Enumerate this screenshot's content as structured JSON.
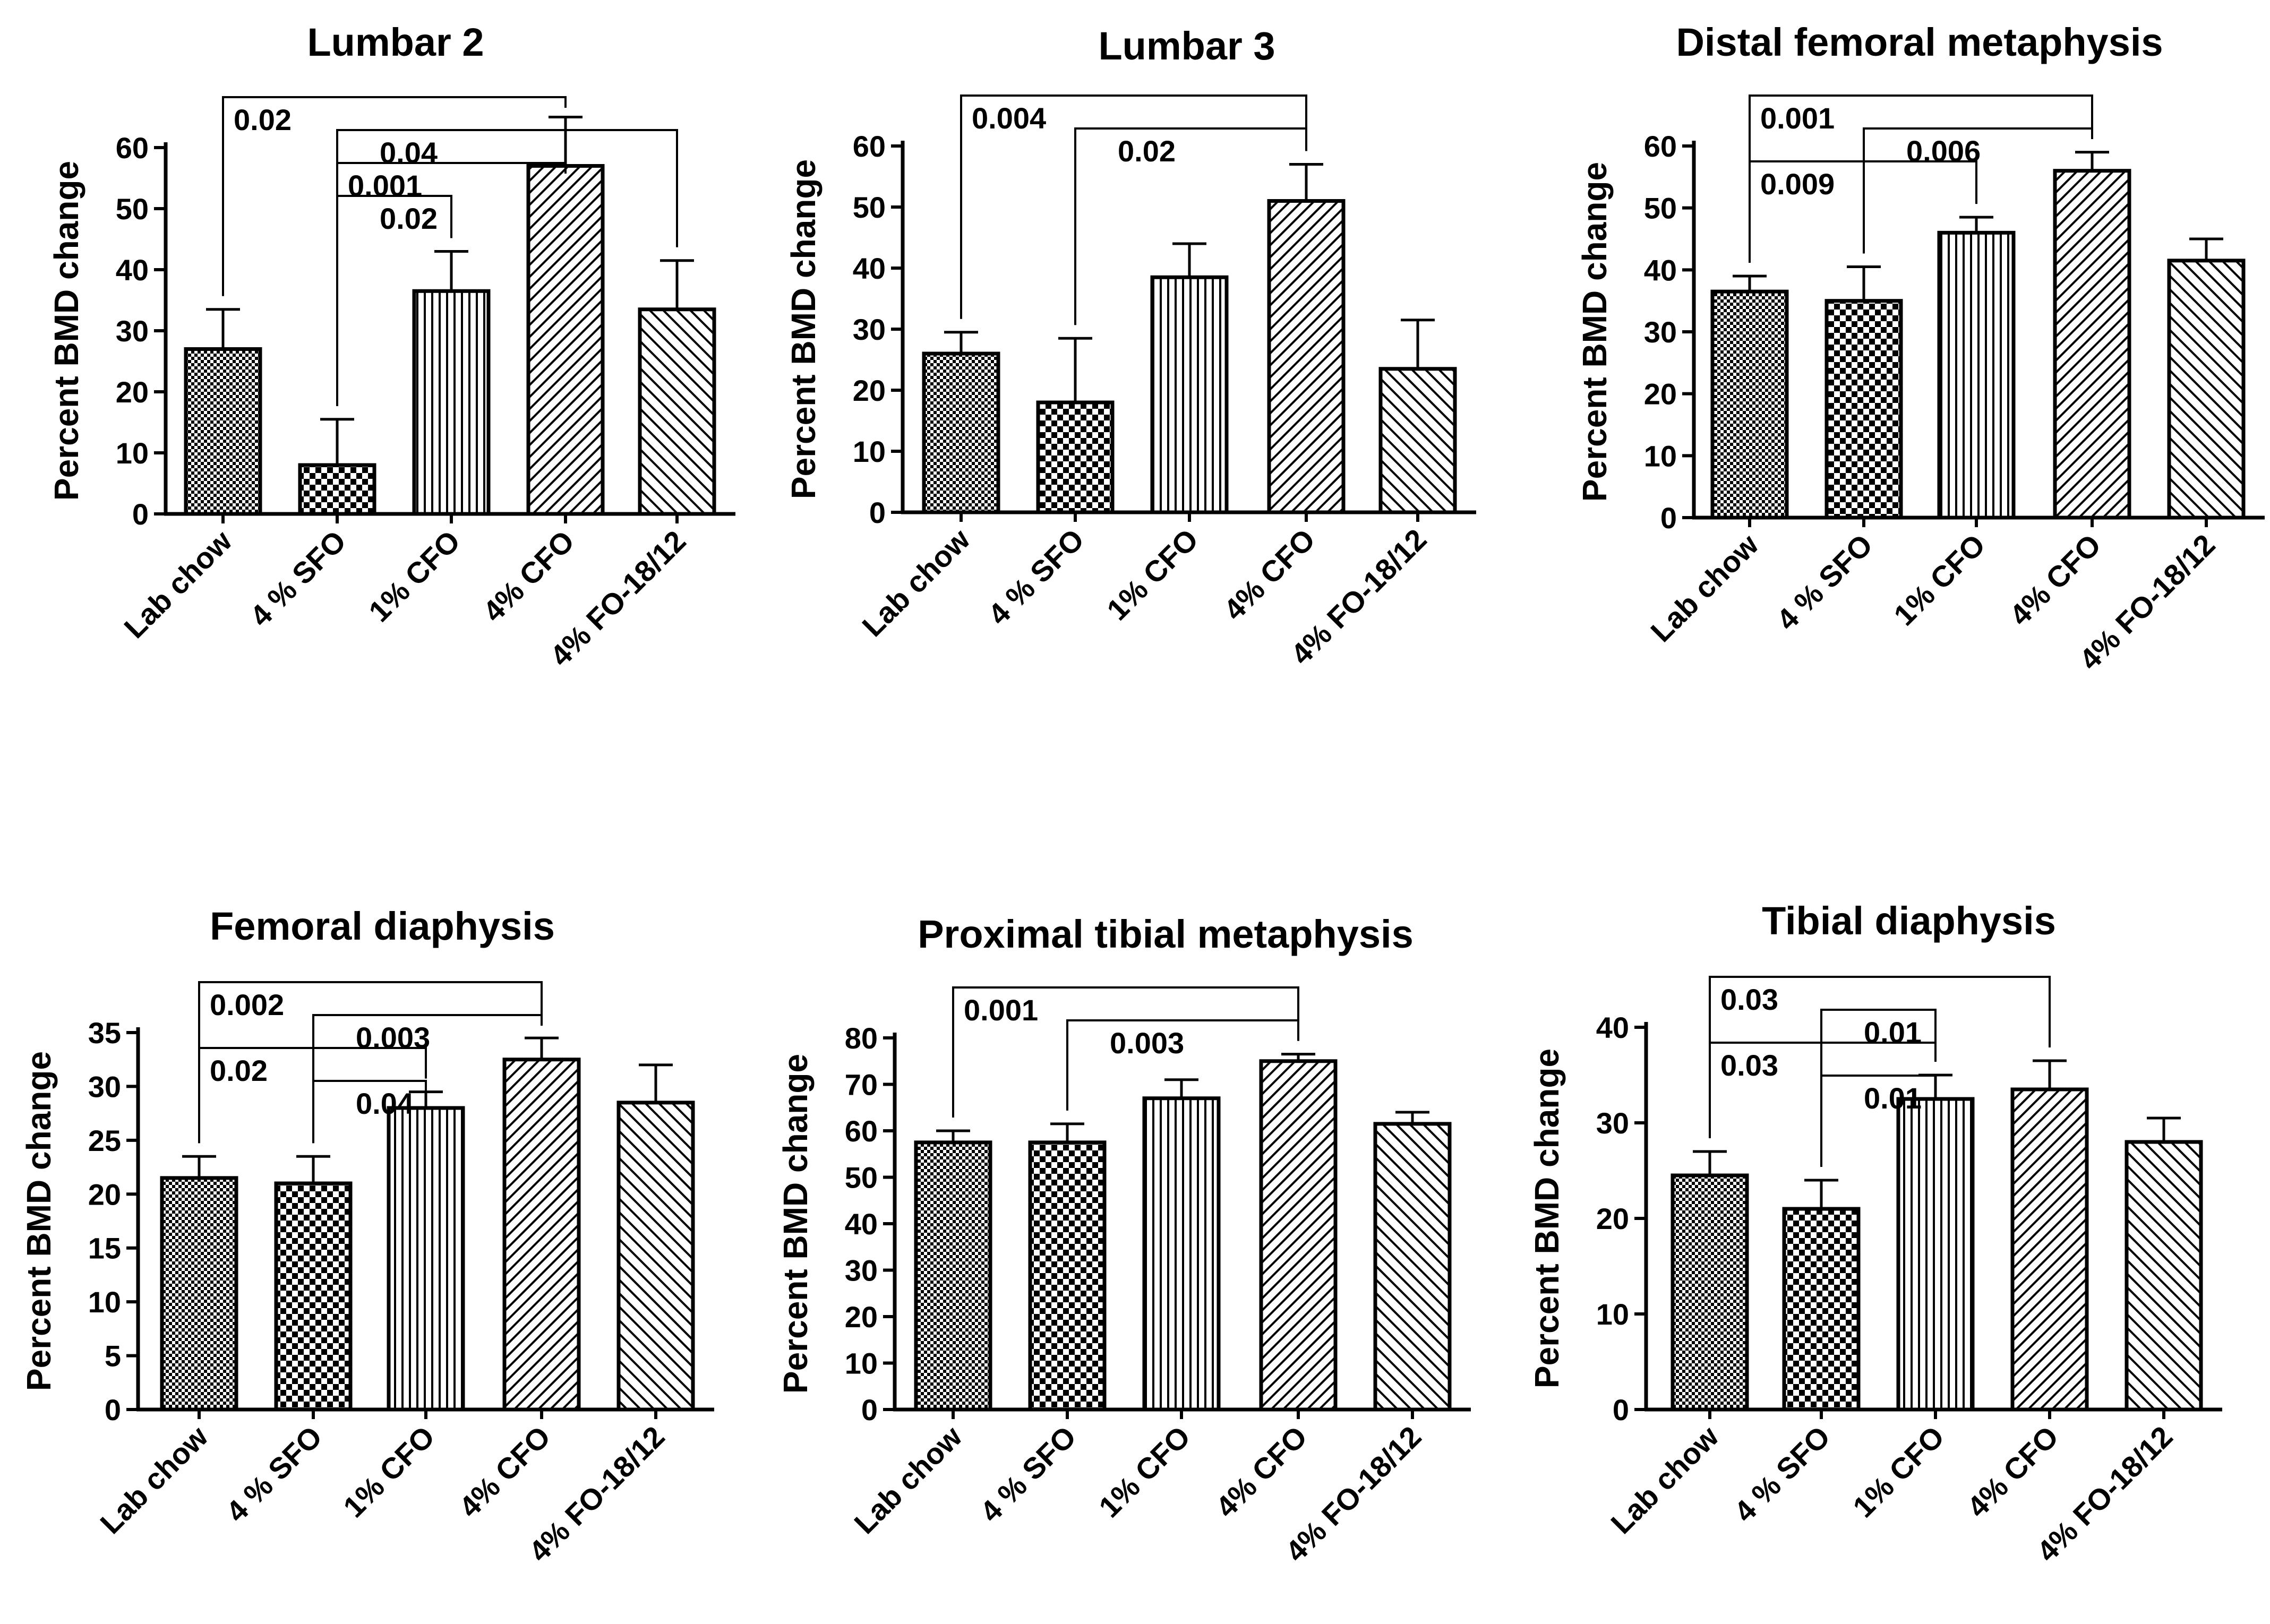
{
  "chart_data": [
    {
      "type": "bar",
      "title": "Lumbar 2",
      "ylabel": "Percent  BMD change",
      "categories": [
        "Lab chow",
        "4 % SFO",
        "1% CFO",
        "4% CFO",
        "4% FO-18/12"
      ],
      "values": [
        27,
        8,
        36.5,
        57,
        33.5
      ],
      "errors": [
        6.5,
        7.5,
        6.5,
        8,
        8
      ],
      "ylim": [
        0,
        60
      ],
      "yticks": [
        0,
        10,
        20,
        30,
        40,
        50,
        60
      ],
      "comparisons": [
        {
          "from": 0,
          "to": 3,
          "p": "0.02"
        },
        {
          "from": 1,
          "to": 4,
          "p": "0.04"
        },
        {
          "from": 1,
          "to": 3,
          "p": "0.001"
        },
        {
          "from": 1,
          "to": 2,
          "p": "0.02"
        }
      ]
    },
    {
      "type": "bar",
      "title": "Lumbar 3",
      "ylabel": "Percent  BMD change",
      "categories": [
        "Lab chow",
        "4 % SFO",
        "1% CFO",
        "4% CFO",
        "4% FO-18/12"
      ],
      "values": [
        26,
        18,
        38.5,
        51,
        23.5
      ],
      "errors": [
        3.5,
        10.5,
        5.5,
        6,
        8
      ],
      "ylim": [
        0,
        60
      ],
      "yticks": [
        0,
        10,
        20,
        30,
        40,
        50,
        60
      ],
      "comparisons": [
        {
          "from": 0,
          "to": 3,
          "p": "0.004"
        },
        {
          "from": 1,
          "to": 3,
          "p": "0.02"
        }
      ]
    },
    {
      "type": "bar",
      "title": "Distal femoral metaphysis",
      "ylabel": "Percent  BMD change",
      "categories": [
        "Lab chow",
        "4 % SFO",
        "1% CFO",
        "4% CFO",
        "4% FO-18/12"
      ],
      "values": [
        36.5,
        35,
        46,
        56,
        41.5
      ],
      "errors": [
        2.5,
        5.5,
        2.5,
        3,
        3.5
      ],
      "ylim": [
        0,
        60
      ],
      "yticks": [
        0,
        10,
        20,
        30,
        40,
        50,
        60
      ],
      "comparisons": [
        {
          "from": 0,
          "to": 3,
          "p": "0.001"
        },
        {
          "from": 1,
          "to": 3,
          "p": "0.006"
        },
        {
          "from": 0,
          "to": 2,
          "p": "0.009"
        }
      ]
    },
    {
      "type": "bar",
      "title": "Femoral diaphysis",
      "ylabel": "Percent  BMD change",
      "categories": [
        "Lab chow",
        "4 % SFO",
        "1% CFO",
        "4% CFO",
        "4% FO-18/12"
      ],
      "values": [
        21.5,
        21,
        28,
        32.5,
        28.5
      ],
      "errors": [
        2,
        2.5,
        1.5,
        2,
        3.5
      ],
      "ylim": [
        0,
        35
      ],
      "yticks": [
        0,
        5,
        10,
        15,
        20,
        25,
        30,
        35
      ],
      "comparisons": [
        {
          "from": 0,
          "to": 3,
          "p": "0.002"
        },
        {
          "from": 1,
          "to": 3,
          "p": "0.003"
        },
        {
          "from": 0,
          "to": 2,
          "p": "0.02"
        },
        {
          "from": 1,
          "to": 2,
          "p": "0.04"
        }
      ]
    },
    {
      "type": "bar",
      "title": "Proximal tibial metaphysis",
      "ylabel": "Percent  BMD change",
      "categories": [
        "Lab chow",
        "4 % SFO",
        "1% CFO",
        "4% CFO",
        "4% FO-18/12"
      ],
      "values": [
        57.5,
        57.5,
        67,
        75,
        61.5
      ],
      "errors": [
        2.5,
        4,
        4,
        1.5,
        2.5
      ],
      "ylim": [
        0,
        80
      ],
      "yticks": [
        0,
        10,
        20,
        30,
        40,
        50,
        60,
        70,
        80
      ],
      "comparisons": [
        {
          "from": 0,
          "to": 3,
          "p": "0.001"
        },
        {
          "from": 1,
          "to": 3,
          "p": "0.003"
        }
      ]
    },
    {
      "type": "bar",
      "title": "Tibial diaphysis",
      "ylabel": "Percent  BMD change",
      "categories": [
        "Lab chow",
        "4 % SFO",
        "1% CFO",
        "4% CFO",
        "4% FO-18/12"
      ],
      "values": [
        24.5,
        21,
        32.5,
        33.5,
        28
      ],
      "errors": [
        2.5,
        3,
        2.5,
        3,
        2.5
      ],
      "ylim": [
        0,
        40
      ],
      "yticks": [
        0,
        10,
        20,
        30,
        40
      ],
      "comparisons": [
        {
          "from": 0,
          "to": 3,
          "p": "0.03"
        },
        {
          "from": 1,
          "to": 2,
          "p": "0.01"
        },
        {
          "from": 0,
          "to": 2,
          "p": "0.03"
        },
        {
          "from": 1,
          "to": 2,
          "p": "0.01"
        }
      ]
    }
  ]
}
